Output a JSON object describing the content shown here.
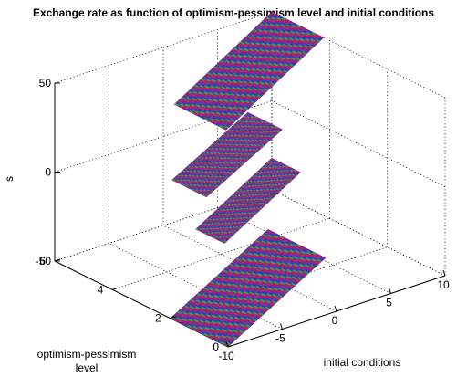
{
  "chart_data": {
    "type": "surface",
    "title": "Exchange rate as function of optimism-pessimism level and initial conditions",
    "xlabel": "initial conditions",
    "ylabel": "optimism-pessimism level",
    "zlabel": "s",
    "xlim": [
      -10,
      10
    ],
    "ylim": [
      0,
      6
    ],
    "zlim": [
      -50,
      50
    ],
    "x_ticks": [
      "-10",
      "-5",
      "0",
      "5",
      "10"
    ],
    "y_ticks": [
      "0",
      "2",
      "4",
      "6"
    ],
    "z_ticks": [
      "-50",
      "0",
      "50"
    ],
    "grid": true,
    "colors": [
      "#d01060",
      "#30a040",
      "#2040d0",
      "#8a2090"
    ],
    "bands": [
      {
        "y_range": [
          0,
          2.0
        ],
        "x_range": [
          -10,
          -1
        ],
        "z_start": -50,
        "z_end": -18
      },
      {
        "y_range": [
          2.0,
          3.0
        ],
        "x_range": [
          -5,
          2
        ],
        "z_start": -18,
        "z_end": 8
      },
      {
        "y_range": [
          3.0,
          4.2
        ],
        "x_range": [
          -4,
          3
        ],
        "z_start": -2,
        "z_end": 22
      },
      {
        "y_range": [
          4.2,
          6.0
        ],
        "x_range": [
          1,
          10
        ],
        "z_start": 16,
        "z_end": 50
      }
    ]
  }
}
